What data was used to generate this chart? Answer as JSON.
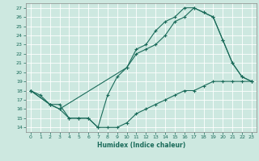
{
  "title": "",
  "xlabel": "Humidex (Indice chaleur)",
  "ylabel": "",
  "xlim": [
    -0.5,
    23.5
  ],
  "ylim": [
    13.5,
    27.5
  ],
  "yticks": [
    14,
    15,
    16,
    17,
    18,
    19,
    20,
    21,
    22,
    23,
    24,
    25,
    26,
    27
  ],
  "xticks": [
    0,
    1,
    2,
    3,
    4,
    5,
    6,
    7,
    8,
    9,
    10,
    11,
    12,
    13,
    14,
    15,
    16,
    17,
    18,
    19,
    20,
    21,
    22,
    23
  ],
  "bg_color": "#cde8e0",
  "line_color": "#1a6b5a",
  "grid_color": "#ffffff",
  "line1_x": [
    0,
    1,
    2,
    3,
    4,
    5,
    6,
    7,
    8,
    9,
    10,
    11,
    12,
    13,
    14,
    15,
    16,
    17,
    18,
    19,
    20,
    21,
    22,
    23
  ],
  "line1_y": [
    18,
    17.5,
    16.5,
    16.5,
    15,
    15,
    15,
    14,
    17.5,
    19.5,
    20.5,
    22.5,
    23,
    24.5,
    25.5,
    26,
    27,
    27,
    26.5,
    26,
    23.5,
    21,
    19.5,
    19
  ],
  "line2_x": [
    0,
    2,
    3,
    4,
    5,
    6,
    7,
    8,
    9,
    10,
    11,
    12,
    13,
    14,
    15,
    16,
    17,
    18,
    19,
    20,
    21,
    22,
    23
  ],
  "line2_y": [
    18,
    16.5,
    16,
    15,
    15,
    15,
    14,
    14,
    14,
    14.5,
    15.5,
    16,
    16.5,
    17,
    17.5,
    18,
    18,
    18.5,
    19,
    19,
    19,
    19,
    19
  ],
  "line3_x": [
    0,
    2,
    3,
    10,
    11,
    12,
    13,
    14,
    15,
    16,
    17,
    18,
    19,
    20,
    21,
    22,
    23
  ],
  "line3_y": [
    18,
    16.5,
    16,
    20.5,
    22,
    22.5,
    23,
    24,
    25.5,
    26,
    27,
    26.5,
    26,
    23.5,
    21,
    19.5,
    19
  ],
  "tick_fontsize": 4.5,
  "xlabel_fontsize": 5.5,
  "tick_color": "#1a6b5a",
  "spine_color": "#888888"
}
